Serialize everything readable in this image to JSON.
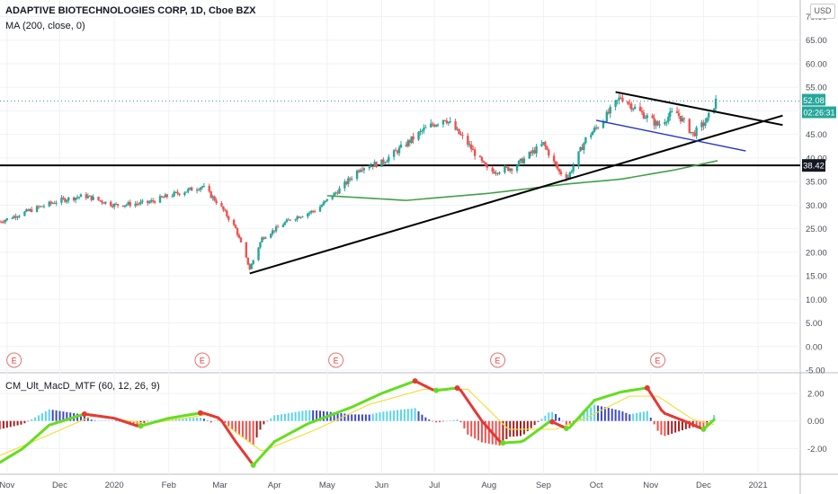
{
  "header": {
    "title": "ADAPTIVE BIOTECHNOLOGIES CORP, 1D, Cboe BZX",
    "indicator": "MA (200, close, 0)",
    "currency": "USD"
  },
  "colors": {
    "up": "#26a69a",
    "down": "#ef5350",
    "ma": "#43a047",
    "trend": "#000000",
    "channel": "#2433c8",
    "macd_up": "#66dd22",
    "macd_down": "#e53935",
    "signal": "#f0e040"
  },
  "chart_data": [
    {
      "type": "candlestick",
      "title": "ADAPTIVE BIOTECHNOLOGIES CORP, 1D, Cboe BZX",
      "x_tick_labels": [
        "Nov",
        "Dec",
        "2020",
        "Feb",
        "Mar",
        "Apr",
        "May",
        "Jun",
        "Jul",
        "Aug",
        "Sep",
        "Oct",
        "Nov",
        "Dec",
        "2021"
      ],
      "y_ticks": [
        "70.00",
        "65.00",
        "60.00",
        "55.00",
        "50.00",
        "45.00",
        "40.00",
        "35.00",
        "30.00",
        "25.00",
        "20.00",
        "15.00",
        "10.00",
        "5.00",
        "0.00",
        "-5.00"
      ],
      "ylim": [
        -5,
        72
      ],
      "last_price": "52.08",
      "countdown": "02:26:31",
      "horizontal_level": "38.42",
      "price_path": [
        {
          "x": "2019-10-28",
          "y": 26.5
        },
        {
          "x": "2019-11-15",
          "y": 29
        },
        {
          "x": "2019-12-01",
          "y": 31
        },
        {
          "x": "2019-12-15",
          "y": 32
        },
        {
          "x": "2020-01-01",
          "y": 30
        },
        {
          "x": "2020-01-20",
          "y": 30.5
        },
        {
          "x": "2020-02-01",
          "y": 32
        },
        {
          "x": "2020-02-20",
          "y": 34
        },
        {
          "x": "2020-03-01",
          "y": 30
        },
        {
          "x": "2020-03-10",
          "y": 25
        },
        {
          "x": "2020-03-18",
          "y": 16.5
        },
        {
          "x": "2020-03-25",
          "y": 23
        },
        {
          "x": "2020-04-10",
          "y": 27
        },
        {
          "x": "2020-04-25",
          "y": 29
        },
        {
          "x": "2020-05-10",
          "y": 34
        },
        {
          "x": "2020-05-20",
          "y": 38
        },
        {
          "x": "2020-06-01",
          "y": 39
        },
        {
          "x": "2020-06-15",
          "y": 43
        },
        {
          "x": "2020-06-25",
          "y": 46
        },
        {
          "x": "2020-07-07",
          "y": 48.5
        },
        {
          "x": "2020-07-20",
          "y": 43
        },
        {
          "x": "2020-08-01",
          "y": 37
        },
        {
          "x": "2020-08-15",
          "y": 38
        },
        {
          "x": "2020-08-25",
          "y": 41
        },
        {
          "x": "2020-09-01",
          "y": 43
        },
        {
          "x": "2020-09-10",
          "y": 37
        },
        {
          "x": "2020-09-15",
          "y": 36
        },
        {
          "x": "2020-09-25",
          "y": 44
        },
        {
          "x": "2020-10-05",
          "y": 48
        },
        {
          "x": "2020-10-15",
          "y": 53
        },
        {
          "x": "2020-10-25",
          "y": 50
        },
        {
          "x": "2020-11-05",
          "y": 47
        },
        {
          "x": "2020-11-15",
          "y": 50
        },
        {
          "x": "2020-11-25",
          "y": 45
        },
        {
          "x": "2020-12-03",
          "y": 48
        },
        {
          "x": "2020-12-08",
          "y": 52.08
        }
      ],
      "ma200": [
        {
          "x": "2020-05-01",
          "y": 32
        },
        {
          "x": "2020-06-15",
          "y": 31
        },
        {
          "x": "2020-08-01",
          "y": 32.5
        },
        {
          "x": "2020-09-15",
          "y": 34.5
        },
        {
          "x": "2020-10-15",
          "y": 35.5
        },
        {
          "x": "2020-11-15",
          "y": 37.5
        },
        {
          "x": "2020-12-10",
          "y": 39.5
        }
      ],
      "trendlines": [
        {
          "name": "support",
          "color": "trend",
          "points": [
            {
              "x": "2020-03-18",
              "y": 15.5
            },
            {
              "x": "2021-01-15",
              "y": 49
            }
          ]
        },
        {
          "name": "resistance",
          "color": "trend",
          "points": [
            {
              "x": "2020-10-12",
              "y": 54
            },
            {
              "x": "2021-01-15",
              "y": 47
            }
          ]
        },
        {
          "name": "channel",
          "color": "channel",
          "points": [
            {
              "x": "2020-10-01",
              "y": 48
            },
            {
              "x": "2020-12-25",
              "y": 41.5
            }
          ]
        }
      ],
      "earnings_markers": [
        {
          "x": "2019-11-05",
          "label": "E"
        },
        {
          "x": "2020-02-20",
          "label": "E"
        },
        {
          "x": "2020-05-06",
          "label": "E"
        },
        {
          "x": "2020-08-06",
          "label": "E"
        },
        {
          "x": "2020-11-05",
          "label": "E"
        }
      ]
    },
    {
      "type": "macd",
      "title": "CM_Ult_MacD_MTF (60, 12, 26, 9)",
      "y_ticks": [
        "2.00",
        "0.00",
        "-2.00"
      ],
      "ylim": [
        -3.6,
        3.3
      ],
      "macd_path": [
        {
          "x": "2019-10-28",
          "y": -3
        },
        {
          "x": "2019-11-10",
          "y": -2
        },
        {
          "x": "2019-11-25",
          "y": -0.3
        },
        {
          "x": "2019-12-15",
          "y": 0.5
        },
        {
          "x": "2020-01-01",
          "y": 0.2
        },
        {
          "x": "2020-01-15",
          "y": -0.4
        },
        {
          "x": "2020-02-01",
          "y": 0.2
        },
        {
          "x": "2020-02-20",
          "y": 0.6
        },
        {
          "x": "2020-03-01",
          "y": 0.2
        },
        {
          "x": "2020-03-10",
          "y": -1.5
        },
        {
          "x": "2020-03-20",
          "y": -3.2
        },
        {
          "x": "2020-04-01",
          "y": -1.5
        },
        {
          "x": "2020-04-20",
          "y": -0.2
        },
        {
          "x": "2020-05-15",
          "y": 1
        },
        {
          "x": "2020-06-01",
          "y": 2
        },
        {
          "x": "2020-06-20",
          "y": 2.9
        },
        {
          "x": "2020-07-01",
          "y": 2.2
        },
        {
          "x": "2020-07-15",
          "y": 2.4
        },
        {
          "x": "2020-07-28",
          "y": 0
        },
        {
          "x": "2020-08-08",
          "y": -1.6
        },
        {
          "x": "2020-08-20",
          "y": -1.5
        },
        {
          "x": "2020-09-05",
          "y": 0
        },
        {
          "x": "2020-09-15",
          "y": -0.6
        },
        {
          "x": "2020-09-30",
          "y": 1.5
        },
        {
          "x": "2020-10-15",
          "y": 2.1
        },
        {
          "x": "2020-10-30",
          "y": 2.4
        },
        {
          "x": "2020-11-08",
          "y": 0.6
        },
        {
          "x": "2020-11-20",
          "y": 0
        },
        {
          "x": "2020-12-01",
          "y": -0.6
        },
        {
          "x": "2020-12-08",
          "y": 0.2
        }
      ],
      "signal_path": [
        {
          "x": "2019-10-28",
          "y": -2.5
        },
        {
          "x": "2019-11-25",
          "y": -1
        },
        {
          "x": "2019-12-20",
          "y": 0.4
        },
        {
          "x": "2020-01-20",
          "y": -0.2
        },
        {
          "x": "2020-02-25",
          "y": 0.5
        },
        {
          "x": "2020-03-25",
          "y": -2.2
        },
        {
          "x": "2020-04-25",
          "y": -0.6
        },
        {
          "x": "2020-05-25",
          "y": 1.2
        },
        {
          "x": "2020-06-25",
          "y": 2.3
        },
        {
          "x": "2020-07-20",
          "y": 2.3
        },
        {
          "x": "2020-08-12",
          "y": -0.6
        },
        {
          "x": "2020-09-08",
          "y": -0.6
        },
        {
          "x": "2020-09-25",
          "y": 0.2
        },
        {
          "x": "2020-10-20",
          "y": 1.8
        },
        {
          "x": "2020-11-05",
          "y": 1.8
        },
        {
          "x": "2020-11-25",
          "y": 0.1
        },
        {
          "x": "2020-12-08",
          "y": -0.3
        }
      ]
    }
  ]
}
